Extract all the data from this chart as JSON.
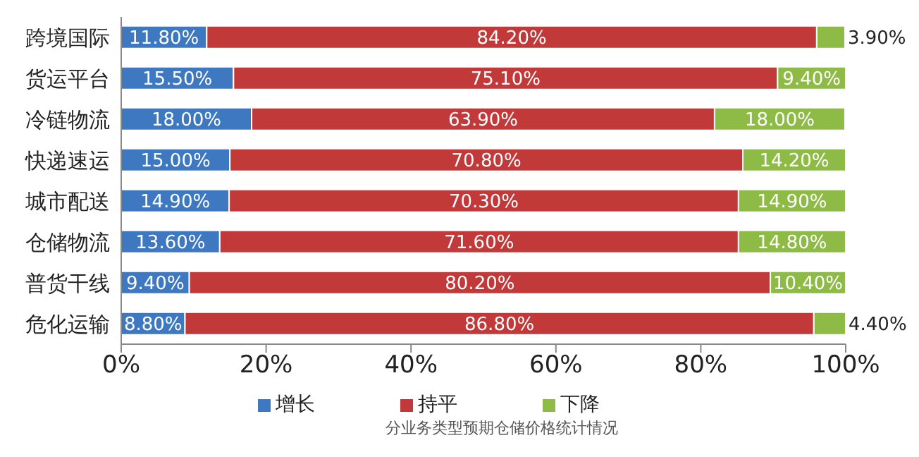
{
  "chart_data": {
    "type": "bar",
    "orientation": "horizontal",
    "stacked": true,
    "categories": [
      "跨境国际",
      "货运平台",
      "冷链物流",
      "快递速运",
      "城市配送",
      "仓储物流",
      "普货干线",
      "危化运输"
    ],
    "series": [
      {
        "name": "增长",
        "color": "#3e78c0",
        "values": [
          11.8,
          15.5,
          18.0,
          15.0,
          14.9,
          13.6,
          9.4,
          8.8
        ],
        "value_labels": [
          "11.80%",
          "15.50%",
          "18.00%",
          "15.00%",
          "14.90%",
          "13.60%",
          "9.40%",
          "8.80%"
        ]
      },
      {
        "name": "持平",
        "color": "#c2393a",
        "values": [
          84.2,
          75.1,
          63.9,
          70.8,
          70.3,
          71.6,
          80.2,
          86.8
        ],
        "value_labels": [
          "84.20%",
          "75.10%",
          "63.90%",
          "70.80%",
          "70.30%",
          "71.60%",
          "80.20%",
          "86.80%"
        ]
      },
      {
        "name": "下降",
        "color": "#8dbb45",
        "values": [
          3.9,
          9.4,
          18.0,
          14.2,
          14.9,
          14.8,
          10.4,
          4.4
        ],
        "value_labels": [
          "3.90%",
          "9.40%",
          "18.00%",
          "14.20%",
          "14.90%",
          "14.80%",
          "10.40%",
          "4.40%"
        ]
      }
    ],
    "xlim": [
      0,
      100
    ],
    "xticks": [
      {
        "value": 0,
        "label": "0%"
      },
      {
        "value": 20,
        "label": "20%"
      },
      {
        "value": 40,
        "label": "40%"
      },
      {
        "value": 60,
        "label": "60%"
      },
      {
        "value": 80,
        "label": "80%"
      },
      {
        "value": 100,
        "label": "100%"
      }
    ],
    "legend": "bottom",
    "grid": false,
    "annotations": [
      "分业务类型预期仓储价格统计情况"
    ]
  }
}
